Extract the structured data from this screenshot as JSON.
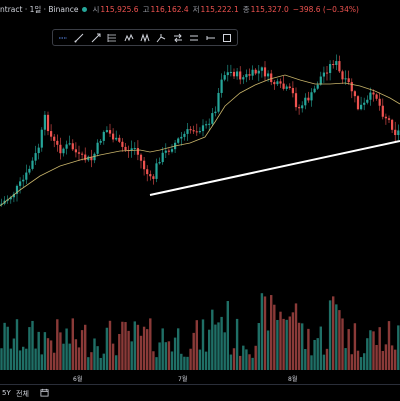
{
  "header": {
    "symbol_fragment": "ntract · 1일 · Binance",
    "open_label": "시",
    "open_value": "115,925.6",
    "high_label": "고",
    "high_value": "116,162.4",
    "low_label": "저",
    "low_value": "115,222.1",
    "close_label": "종",
    "close_value": "115,327.0",
    "change": "−398.6 (−0.34%)"
  },
  "toolbar": {
    "tools": [
      "select-icon",
      "trendline-icon",
      "ray-icon",
      "fib-icon",
      "pattern-icon",
      "pitchfork-icon",
      "projection-icon",
      "arrows-icon",
      "measure-icon",
      "range-icon",
      "square-icon"
    ]
  },
  "time_axis": {
    "labels": [
      "6월",
      "7월",
      "8월"
    ]
  },
  "bottom_bar": {
    "range_5y": "5Y",
    "range_all": "전체"
  },
  "colors": {
    "background": "#000000",
    "up": "#26a69a",
    "down": "#ef5350",
    "moving_average": "#c8b46a",
    "trendline": "#ffffff"
  },
  "chart_data": {
    "type": "candlestick",
    "moving_average_visible": true,
    "trendline_visible": true,
    "grid": false
  }
}
